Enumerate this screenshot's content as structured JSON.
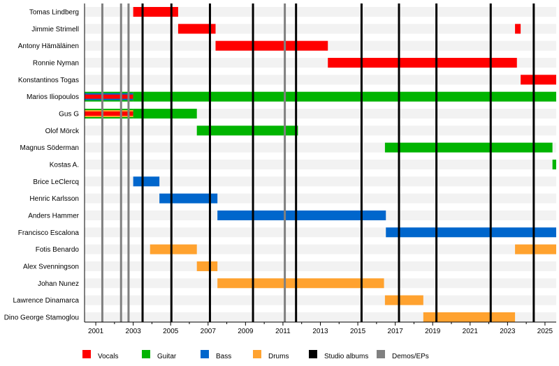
{
  "chart_data": {
    "type": "timeline",
    "xlim": [
      2000.4,
      2025.6
    ],
    "x_ticks": [
      2001,
      2003,
      2005,
      2007,
      2009,
      2011,
      2013,
      2015,
      2017,
      2019,
      2021,
      2023,
      2025
    ],
    "role_colors": {
      "Vocals": "#ff0000",
      "Guitar": "#00b400",
      "Bass": "#0066cc",
      "Drums": "#ffa22f",
      "Studio albums": "#000000",
      "Demos/EPs": "#808080"
    },
    "members": [
      {
        "name": "Tomas Lindberg",
        "bars": [
          {
            "roles": [
              "Vocals"
            ],
            "from": 2003.0,
            "to": 2005.4
          }
        ]
      },
      {
        "name": "Jimmie Strimell",
        "bars": [
          {
            "roles": [
              "Vocals"
            ],
            "from": 2005.4,
            "to": 2007.4
          },
          {
            "roles": [
              "Vocals"
            ],
            "from": 2023.4,
            "to": 2023.7
          }
        ]
      },
      {
        "name": "Antony Hämäläinen",
        "bars": [
          {
            "roles": [
              "Vocals"
            ],
            "from": 2007.4,
            "to": 2013.4
          }
        ]
      },
      {
        "name": "Ronnie Nyman",
        "bars": [
          {
            "roles": [
              "Vocals"
            ],
            "from": 2013.4,
            "to": 2023.5
          }
        ]
      },
      {
        "name": "Konstantinos Togas",
        "bars": [
          {
            "roles": [
              "Vocals"
            ],
            "from": 2023.7,
            "to": 2025.6
          }
        ]
      },
      {
        "name": "Marios Iliopoulos",
        "bars": [
          {
            "roles": [
              "Guitar",
              "Bass",
              "Vocals"
            ],
            "from": 2000.4,
            "to": 2003.0
          },
          {
            "roles": [
              "Guitar"
            ],
            "from": 2003.0,
            "to": 2025.6
          }
        ]
      },
      {
        "name": "Gus G",
        "bars": [
          {
            "roles": [
              "Guitar",
              "Drums",
              "Vocals"
            ],
            "from": 2000.4,
            "to": 2003.0
          },
          {
            "roles": [
              "Guitar"
            ],
            "from": 2003.0,
            "to": 2006.4
          }
        ]
      },
      {
        "name": "Olof Mörck",
        "bars": [
          {
            "roles": [
              "Guitar"
            ],
            "from": 2006.4,
            "to": 2011.8
          }
        ]
      },
      {
        "name": "Magnus Söderman",
        "bars": [
          {
            "roles": [
              "Guitar"
            ],
            "from": 2016.45,
            "to": 2025.4
          }
        ]
      },
      {
        "name": "Kostas A.",
        "bars": [
          {
            "roles": [
              "Guitar"
            ],
            "from": 2025.4,
            "to": 2025.6
          }
        ]
      },
      {
        "name": "Brice LeClercq",
        "bars": [
          {
            "roles": [
              "Bass"
            ],
            "from": 2003.0,
            "to": 2004.4
          }
        ]
      },
      {
        "name": "Henric Karlsson",
        "bars": [
          {
            "roles": [
              "Bass"
            ],
            "from": 2004.4,
            "to": 2007.5
          }
        ]
      },
      {
        "name": "Anders Hammer",
        "bars": [
          {
            "roles": [
              "Bass"
            ],
            "from": 2007.5,
            "to": 2016.5
          }
        ]
      },
      {
        "name": "Francisco Escalona",
        "bars": [
          {
            "roles": [
              "Bass"
            ],
            "from": 2016.5,
            "to": 2025.6
          }
        ]
      },
      {
        "name": "Fotis Benardo",
        "bars": [
          {
            "roles": [
              "Drums"
            ],
            "from": 2003.9,
            "to": 2006.4
          },
          {
            "roles": [
              "Drums"
            ],
            "from": 2023.4,
            "to": 2025.6
          }
        ]
      },
      {
        "name": "Alex Svenningson",
        "bars": [
          {
            "roles": [
              "Drums"
            ],
            "from": 2006.4,
            "to": 2007.5
          }
        ]
      },
      {
        "name": "Johan Nunez",
        "bars": [
          {
            "roles": [
              "Drums"
            ],
            "from": 2007.5,
            "to": 2016.4
          }
        ]
      },
      {
        "name": "Lawrence Dinamarca",
        "bars": [
          {
            "roles": [
              "Drums"
            ],
            "from": 2016.45,
            "to": 2018.5
          }
        ]
      },
      {
        "name": "Dino George Stamoglou",
        "bars": [
          {
            "roles": [
              "Drums"
            ],
            "from": 2018.5,
            "to": 2023.4
          }
        ]
      }
    ],
    "studio_albums": [
      2003.5,
      2005.04,
      2007.1,
      2009.4,
      2011.7,
      2015.2,
      2017.2,
      2019.2,
      2022.1,
      2024.4
    ],
    "demos_eps": [
      2001.35,
      2002.35,
      2002.75,
      2011.1
    ],
    "legend": [
      "Vocals",
      "Guitar",
      "Bass",
      "Drums",
      "Studio albums",
      "Demos/EPs"
    ],
    "legend_placement": "bottom"
  }
}
